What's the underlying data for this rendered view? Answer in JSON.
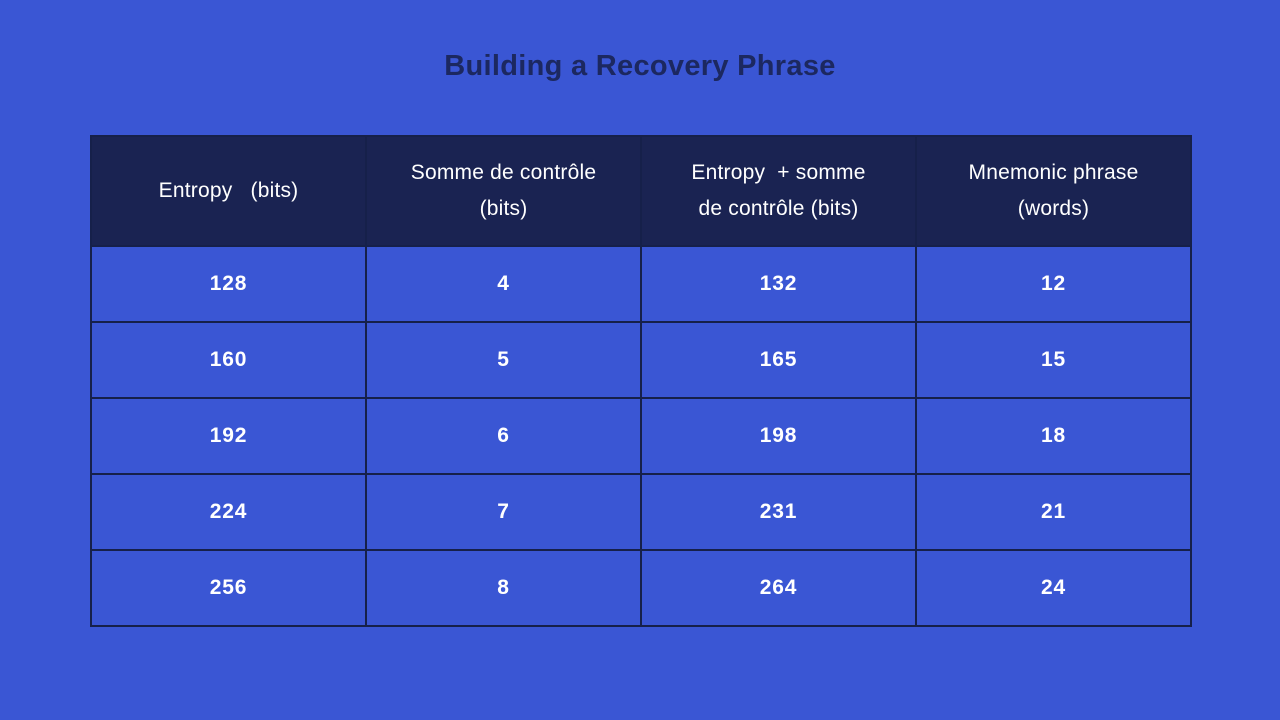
{
  "theme": {
    "bg": "#3A56D4",
    "header-bg": "#1A2352",
    "border": "#16204A",
    "title-color": "#1C2860",
    "cell-text": "#FFFFFF"
  },
  "title": "Building a Recovery Phrase",
  "table": {
    "columns": [
      {
        "label": "Entropy   (bits)"
      },
      {
        "label": "Somme de contrôle\n(bits)"
      },
      {
        "label": "Entropy  + somme\nde contrôle (bits)"
      },
      {
        "label": "Mnemonic phrase\n(words)"
      }
    ],
    "rows": [
      {
        "cells": [
          "128",
          "4",
          "132",
          "12"
        ]
      },
      {
        "cells": [
          "160",
          "5",
          "165",
          "15"
        ]
      },
      {
        "cells": [
          "192",
          "6",
          "198",
          "18"
        ]
      },
      {
        "cells": [
          "224",
          "7",
          "231",
          "21"
        ]
      },
      {
        "cells": [
          "256",
          "8",
          "264",
          "24"
        ]
      }
    ]
  },
  "chart_data": {
    "type": "table",
    "title": "Building a Recovery Phrase",
    "columns": [
      "Entropy (bits)",
      "Somme de contrôle (bits)",
      "Entropy + somme de contrôle (bits)",
      "Mnemonic phrase (words)"
    ],
    "rows": [
      [
        128,
        4,
        132,
        12
      ],
      [
        160,
        5,
        165,
        15
      ],
      [
        192,
        6,
        198,
        18
      ],
      [
        224,
        7,
        231,
        21
      ],
      [
        256,
        8,
        264,
        24
      ]
    ]
  }
}
